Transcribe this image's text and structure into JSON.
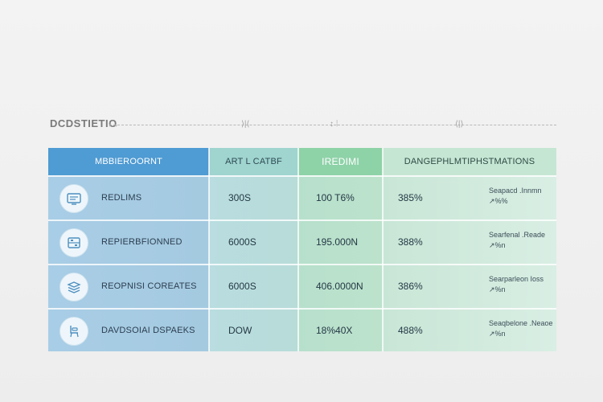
{
  "header": {
    "title": "DCDSTIETIO",
    "tick_marks": [
      "↓  ↓",
      "⟩|⟨",
      "↕ ⁞",
      "⟨|⟩"
    ]
  },
  "table": {
    "columns": [
      "MBBIEROORNT",
      "ART  L CATBF",
      "IREDIMI",
      "DANGEPHLMTIPHSTMATIONS"
    ],
    "rows": [
      {
        "icon": "screen-icon",
        "label": "REDLIMS",
        "col2": "300S",
        "col3": "100  T6%",
        "col4": "385%",
        "note1": "Seapacd  .Innmn",
        "note2": "↗%%"
      },
      {
        "icon": "cabinet-icon",
        "label": "REPIERBFIONNED",
        "col2": "6000S",
        "col3": "195.000N",
        "col4": "388%",
        "note1": "Searfenal  .Reade",
        "note2": "↗%n"
      },
      {
        "icon": "layers-icon",
        "label": "REOPNISI COREATES",
        "col2": "6000S",
        "col3": "406.0000N",
        "col4": "386%",
        "note1": "Searparleon  Ioss",
        "note2": "↗%n"
      },
      {
        "icon": "chair-icon",
        "label": "DAVDSOIAI DSPAEKS",
        "col2": "DOW",
        "col3": "18%40X",
        "col4": "488%",
        "note1": "Seaqbelone  .Neaoe",
        "note2": "↗%n"
      }
    ]
  },
  "colors": {
    "header_blue": "#4f9bd3",
    "header_teal": "#9fd4cf",
    "header_green": "#8ed2a8",
    "header_mint": "#c6e6d4"
  }
}
